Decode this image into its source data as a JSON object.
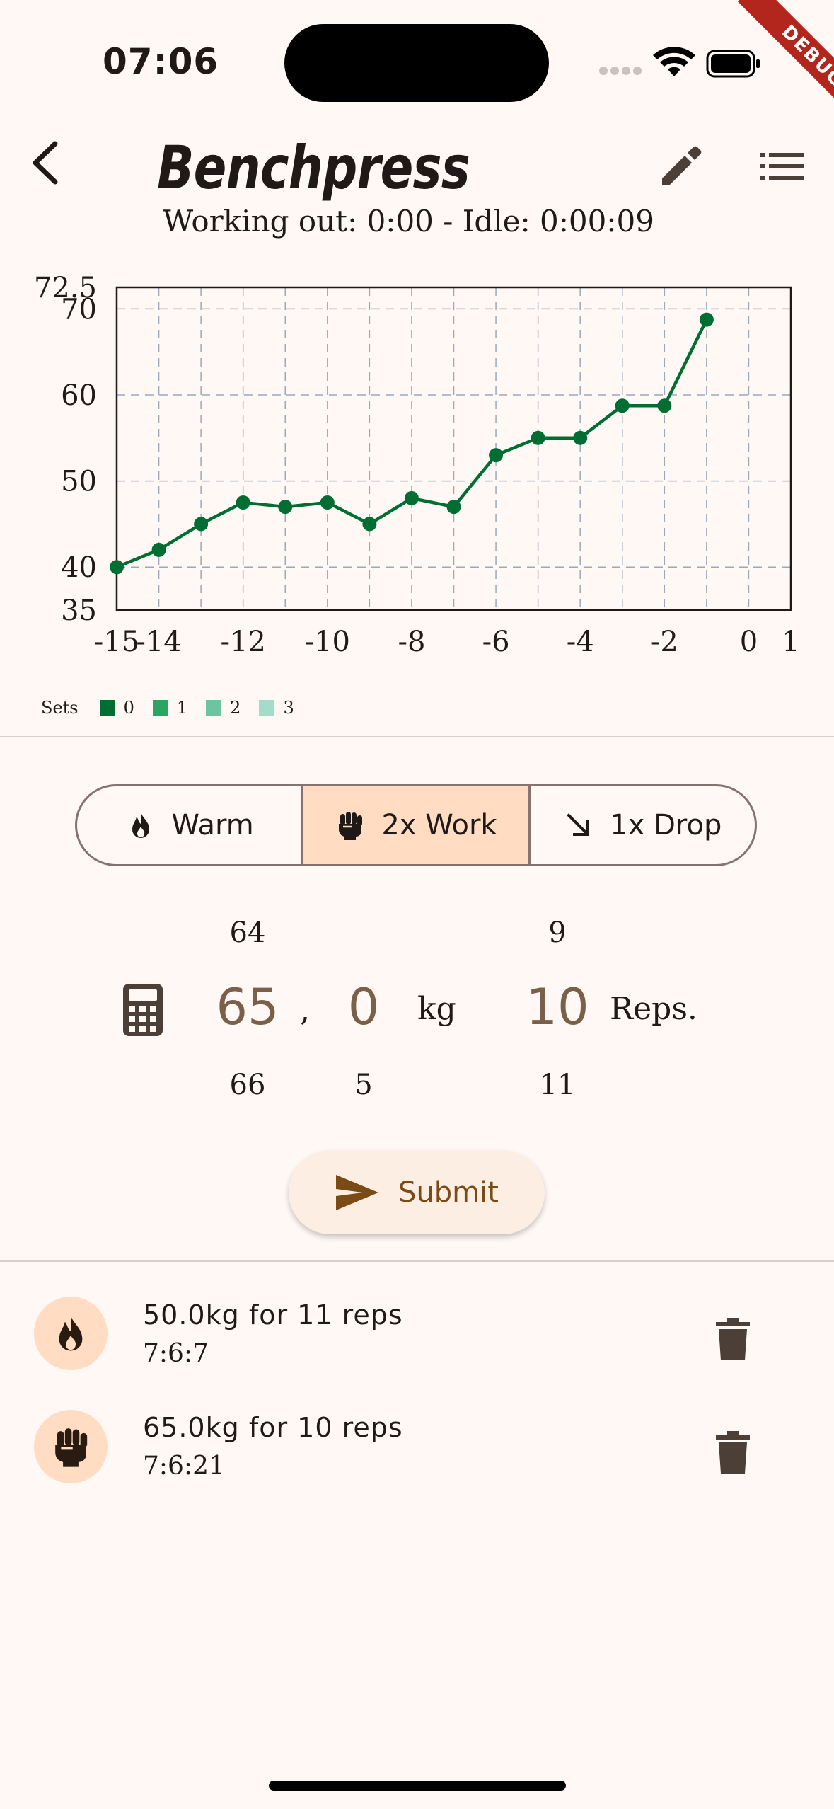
{
  "status_bar": {
    "time": "07:06",
    "debug_label": "DEBUG"
  },
  "header": {
    "title": "Benchpress",
    "subtitle": "Working out: 0:00 - Idle: 0:00:09"
  },
  "chart_data": {
    "type": "line",
    "title": "",
    "x": [
      -15,
      -14,
      -13,
      -12,
      -11,
      -10,
      -9,
      -8,
      -7,
      -6,
      -5,
      -4,
      -3,
      -2,
      -1
    ],
    "series": [
      {
        "name": "0",
        "values": [
          40,
          42,
          45,
          47.5,
          47,
          47.5,
          45,
          48,
          47,
          53,
          55,
          55,
          58.75,
          58.75,
          68.75
        ]
      }
    ],
    "xlim": [
      -15,
      1
    ],
    "ylim": [
      35,
      72.5
    ],
    "x_ticks": [
      "-15",
      "-14",
      "-12",
      "-10",
      "-8",
      "-6",
      "-4",
      "-2",
      "0",
      "1"
    ],
    "x_tick_values": [
      -15,
      -14,
      -12,
      -10,
      -8,
      -6,
      -4,
      -2,
      0,
      1
    ],
    "y_ticks": [
      "35",
      "40",
      "50",
      "60",
      "70",
      "72.5"
    ],
    "y_tick_values": [
      35,
      40,
      50,
      60,
      70,
      72.5
    ],
    "grid": true,
    "line_color": "#006d32"
  },
  "legend": {
    "title": "Sets",
    "items": [
      {
        "label": "0",
        "color": "#006d32"
      },
      {
        "label": "1",
        "color": "#2aa564"
      },
      {
        "label": "2",
        "color": "#6cc4a0"
      },
      {
        "label": "3",
        "color": "#a3dccb"
      }
    ]
  },
  "set_types": [
    {
      "label": "Warm",
      "icon": "flame-icon",
      "selected": false
    },
    {
      "label": "2x Work",
      "icon": "fist-icon",
      "selected": true
    },
    {
      "label": "1x Drop",
      "icon": "arrow-down-right-icon",
      "selected": false
    }
  ],
  "pickers": {
    "weight_int": {
      "prev": "64",
      "value": "65",
      "next": "66"
    },
    "separator": ",",
    "weight_dec": {
      "prev": "",
      "value": "0",
      "next": "5"
    },
    "weight_unit": "kg",
    "reps": {
      "prev": "9",
      "value": "10",
      "next": "11"
    },
    "reps_unit": "Reps."
  },
  "submit_label": "Submit",
  "history": [
    {
      "title": "50.0kg for 11 reps",
      "time": "7:6:7",
      "icon": "flame-icon"
    },
    {
      "title": "65.0kg for 10 reps",
      "time": "7:6:21",
      "icon": "fist-icon"
    }
  ]
}
